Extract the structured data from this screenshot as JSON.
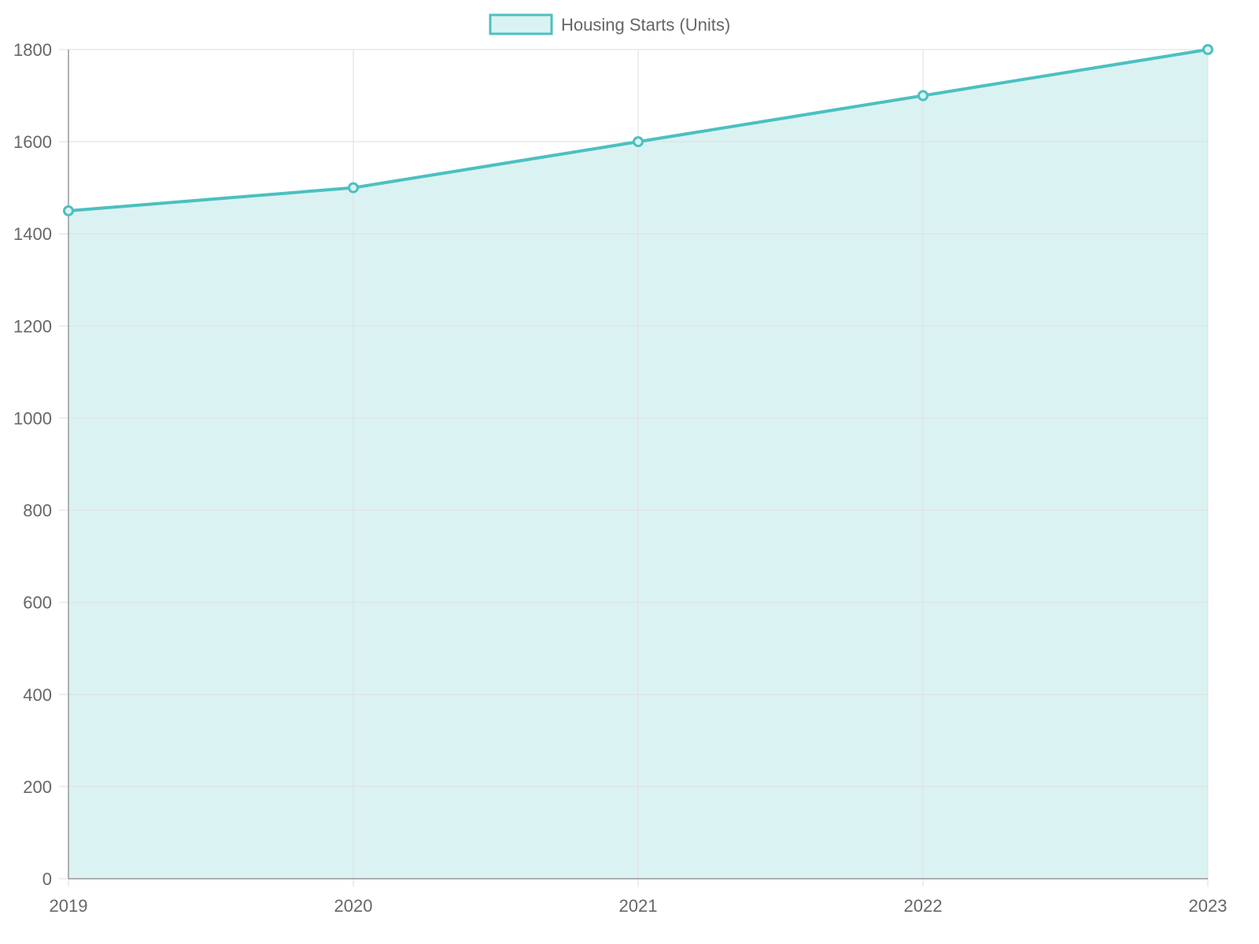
{
  "chart_data": {
    "type": "area",
    "categories": [
      "2019",
      "2020",
      "2021",
      "2022",
      "2023"
    ],
    "series": [
      {
        "name": "Housing Starts (Units)",
        "values": [
          1450,
          1500,
          1600,
          1700,
          1800
        ]
      }
    ],
    "ylim": [
      0,
      1800
    ],
    "yticks": [
      0,
      200,
      400,
      600,
      800,
      1000,
      1200,
      1400,
      1600,
      1800
    ],
    "grid": true,
    "legend_position": "top-center",
    "colors": {
      "line": "#4bc0c0",
      "fill": "#dbf2f2",
      "grid": "#e0e0e0",
      "axis": "#999999",
      "text": "#666666"
    }
  }
}
